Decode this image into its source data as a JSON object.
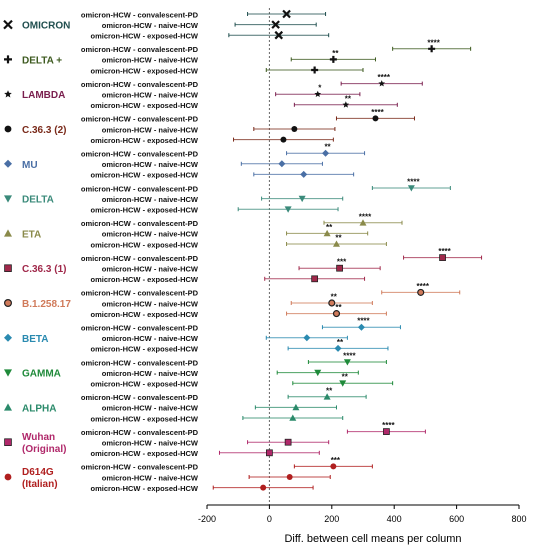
{
  "chart_data": {
    "type": "scatter",
    "subtype": "forest-plot-with-error-bars",
    "xlabel": "Diff. between cell means per column",
    "xlim": [
      -200,
      800
    ],
    "xticks": [
      "-200",
      "0",
      "200",
      "400",
      "600",
      "800"
    ],
    "xtick_values": [
      -200,
      0,
      200,
      400,
      600,
      800
    ],
    "reference_line_x": 0,
    "comparisons": [
      "omicron-HCW - convalescent-PD",
      "omicron-HCW - naive-HCW",
      "omicron-HCW - exposed-HCW"
    ],
    "groups": [
      {
        "name": "OMICRON",
        "label_lines": [
          "OMICRON"
        ],
        "color": "#1f4e4e",
        "marker": "x",
        "rows": [
          {
            "mean": 55,
            "lo": -70,
            "hi": 180,
            "sig": ""
          },
          {
            "mean": 20,
            "lo": -110,
            "hi": 150,
            "sig": ""
          },
          {
            "mean": 30,
            "lo": -130,
            "hi": 190,
            "sig": ""
          }
        ]
      },
      {
        "name": "DELTA +",
        "label_lines": [
          "DELTA +"
        ],
        "color": "#3d5a1f",
        "marker": "plus",
        "rows": [
          {
            "mean": 520,
            "lo": 395,
            "hi": 645,
            "sig": "****"
          },
          {
            "mean": 205,
            "lo": 70,
            "hi": 340,
            "sig": "**"
          },
          {
            "mean": 145,
            "lo": -10,
            "hi": 300,
            "sig": ""
          }
        ]
      },
      {
        "name": "LAMBDA",
        "label_lines": [
          "LAMBDA"
        ],
        "color": "#7a1f4e",
        "marker": "star",
        "rows": [
          {
            "mean": 360,
            "lo": 230,
            "hi": 490,
            "sig": "****"
          },
          {
            "mean": 155,
            "lo": 20,
            "hi": 290,
            "sig": "*"
          },
          {
            "mean": 245,
            "lo": 80,
            "hi": 410,
            "sig": "**"
          }
        ]
      },
      {
        "name": "C.36.3 (2)",
        "label_lines": [
          "C.36.3 (2)"
        ],
        "color": "#7a2a1a",
        "marker": "circle",
        "rows": [
          {
            "mean": 340,
            "lo": 215,
            "hi": 465,
            "sig": "****"
          },
          {
            "mean": 80,
            "lo": -50,
            "hi": 210,
            "sig": ""
          },
          {
            "mean": 45,
            "lo": -115,
            "hi": 205,
            "sig": ""
          }
        ]
      },
      {
        "name": "MU",
        "label_lines": [
          "MU"
        ],
        "color": "#4a6fa5",
        "marker": "diamond",
        "rows": [
          {
            "mean": 180,
            "lo": 55,
            "hi": 305,
            "sig": "**"
          },
          {
            "mean": 40,
            "lo": -90,
            "hi": 170,
            "sig": ""
          },
          {
            "mean": 110,
            "lo": -50,
            "hi": 270,
            "sig": ""
          }
        ]
      },
      {
        "name": "DELTA",
        "label_lines": [
          "DELTA"
        ],
        "color": "#3a8a7a",
        "marker": "triangle-down",
        "rows": [
          {
            "mean": 455,
            "lo": 330,
            "hi": 580,
            "sig": "****"
          },
          {
            "mean": 105,
            "lo": -25,
            "hi": 235,
            "sig": ""
          },
          {
            "mean": 60,
            "lo": -100,
            "hi": 220,
            "sig": ""
          }
        ]
      },
      {
        "name": "ETA",
        "label_lines": [
          "ETA"
        ],
        "color": "#8a8a4a",
        "marker": "triangle-up",
        "rows": [
          {
            "mean": 300,
            "lo": 175,
            "hi": 425,
            "sig": "****"
          },
          {
            "mean": 185,
            "lo": 55,
            "hi": 315,
            "sig": "**"
          },
          {
            "mean": 215,
            "lo": 55,
            "hi": 375,
            "sig": "**"
          }
        ]
      },
      {
        "name": "C.36.3 (1)",
        "label_lines": [
          "C.36.3 (1)"
        ],
        "color": "#a0284a",
        "marker": "square",
        "rows": [
          {
            "mean": 555,
            "lo": 430,
            "hi": 680,
            "sig": "****"
          },
          {
            "mean": 225,
            "lo": 95,
            "hi": 355,
            "sig": "***"
          },
          {
            "mean": 145,
            "lo": -15,
            "hi": 305,
            "sig": ""
          }
        ]
      },
      {
        "name": "B.1.258.17",
        "label_lines": [
          "B.1.258.17"
        ],
        "color": "#d07a5a",
        "marker": "circle-ringed",
        "rows": [
          {
            "mean": 485,
            "lo": 360,
            "hi": 610,
            "sig": "****"
          },
          {
            "mean": 200,
            "lo": 70,
            "hi": 330,
            "sig": "**"
          },
          {
            "mean": 215,
            "lo": 55,
            "hi": 375,
            "sig": "**"
          }
        ]
      },
      {
        "name": "BETA",
        "label_lines": [
          "BETA"
        ],
        "color": "#2a8ab0",
        "marker": "diamond",
        "rows": [
          {
            "mean": 295,
            "lo": 170,
            "hi": 420,
            "sig": "****"
          },
          {
            "mean": 120,
            "lo": -10,
            "hi": 250,
            "sig": ""
          },
          {
            "mean": 220,
            "lo": 60,
            "hi": 380,
            "sig": "**"
          }
        ]
      },
      {
        "name": "GAMMA",
        "label_lines": [
          "GAMMA"
        ],
        "color": "#1f8a3a",
        "marker": "triangle-down",
        "rows": [
          {
            "mean": 250,
            "lo": 125,
            "hi": 375,
            "sig": "****"
          },
          {
            "mean": 155,
            "lo": 25,
            "hi": 285,
            "sig": ""
          },
          {
            "mean": 235,
            "lo": 75,
            "hi": 395,
            "sig": "**"
          }
        ]
      },
      {
        "name": "ALPHA",
        "label_lines": [
          "ALPHA"
        ],
        "color": "#2a8a6a",
        "marker": "triangle-up",
        "rows": [
          {
            "mean": 185,
            "lo": 60,
            "hi": 310,
            "sig": "**"
          },
          {
            "mean": 85,
            "lo": -45,
            "hi": 215,
            "sig": ""
          },
          {
            "mean": 75,
            "lo": -85,
            "hi": 235,
            "sig": ""
          }
        ]
      },
      {
        "name": "Wuhan (Original)",
        "label_lines": [
          "Wuhan",
          "(Original)"
        ],
        "color": "#b0286a",
        "marker": "square",
        "rows": [
          {
            "mean": 375,
            "lo": 250,
            "hi": 500,
            "sig": "****"
          },
          {
            "mean": 60,
            "lo": -70,
            "hi": 190,
            "sig": ""
          },
          {
            "mean": 0,
            "lo": -160,
            "hi": 160,
            "sig": ""
          }
        ]
      },
      {
        "name": "D614G (Italian)",
        "label_lines": [
          "D614G",
          "(Italian)"
        ],
        "color": "#b01f1f",
        "marker": "circle",
        "rows": [
          {
            "mean": 205,
            "lo": 80,
            "hi": 330,
            "sig": "***"
          },
          {
            "mean": 65,
            "lo": -65,
            "hi": 195,
            "sig": ""
          },
          {
            "mean": -20,
            "lo": -180,
            "hi": 140,
            "sig": ""
          }
        ]
      }
    ]
  }
}
